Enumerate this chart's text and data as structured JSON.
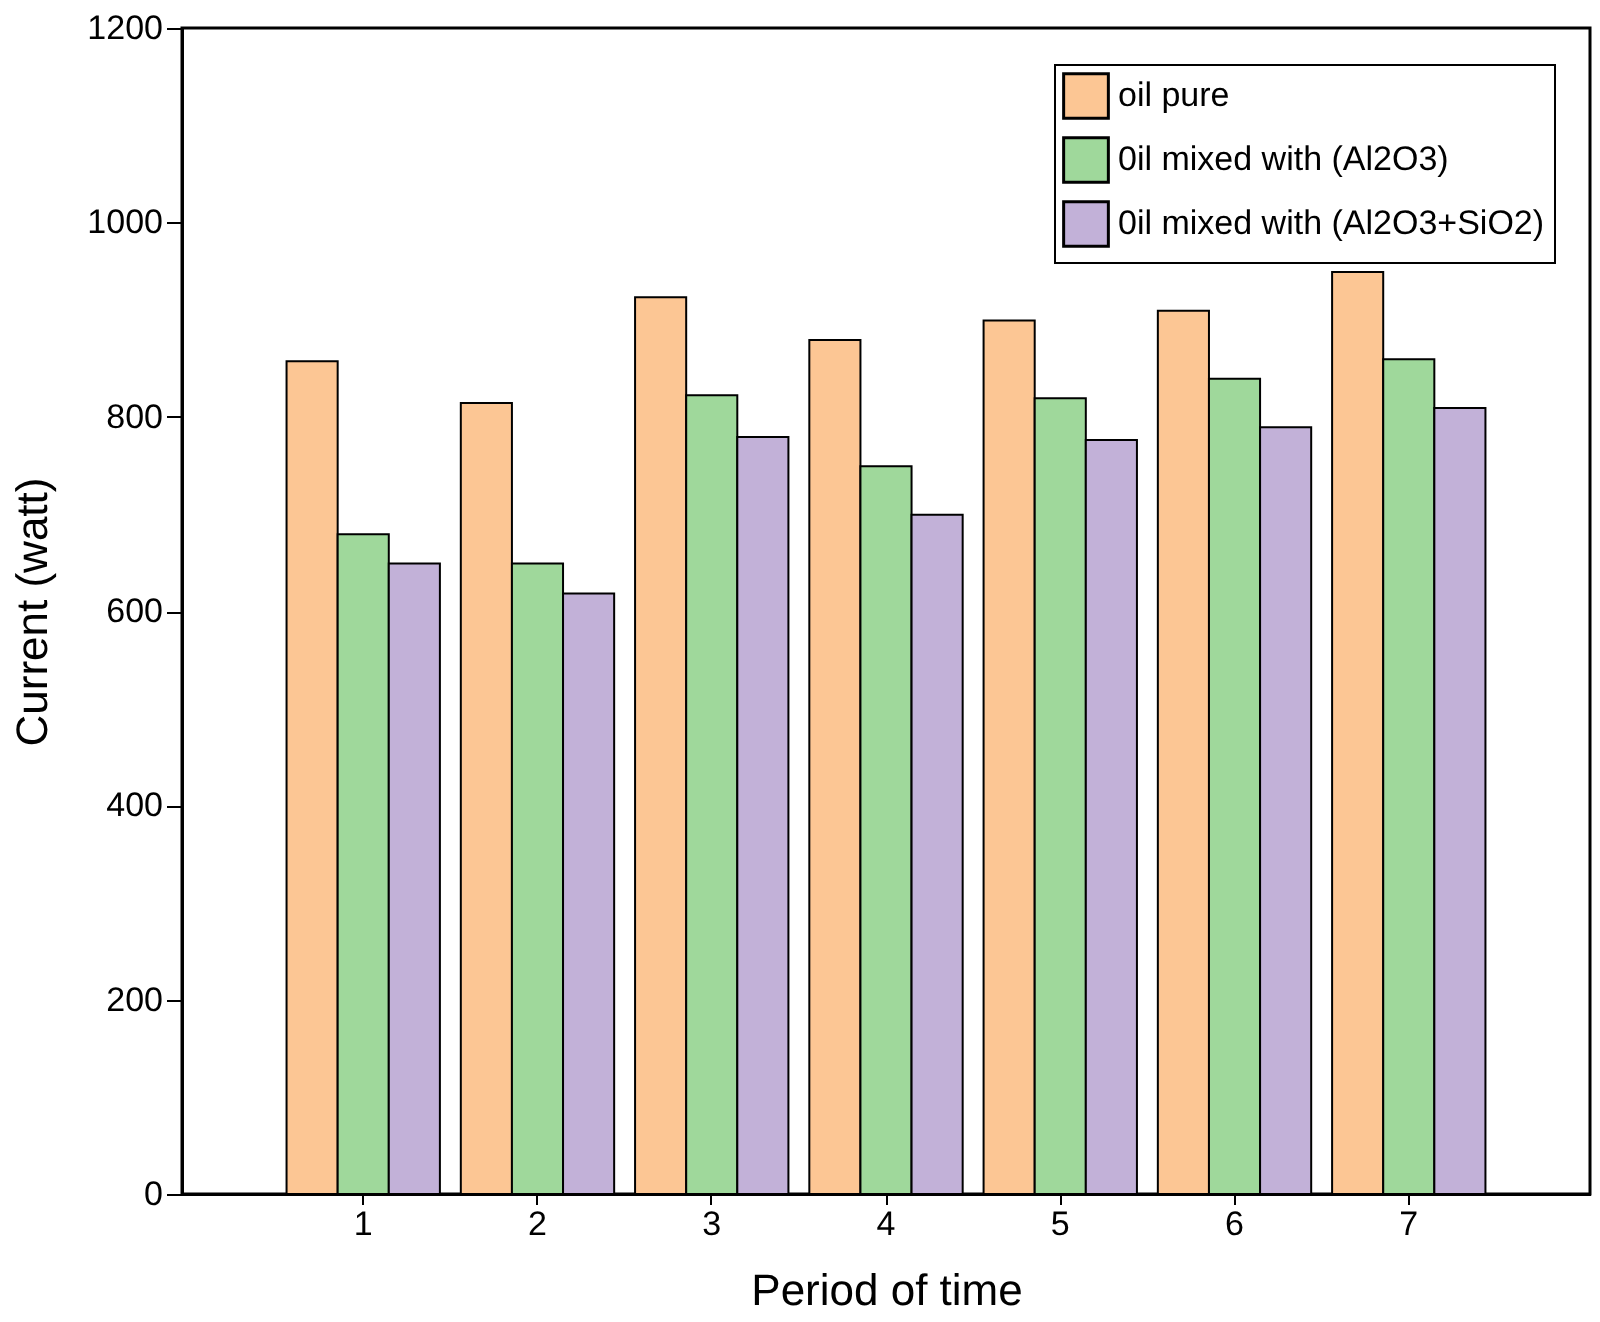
{
  "chart_data": {
    "type": "bar",
    "xlabel": "Period of time",
    "ylabel": "Current (watt)",
    "categories": [
      "1",
      "2",
      "3",
      "4",
      "5",
      "6",
      "7"
    ],
    "series": [
      {
        "name": "oil pure",
        "color": "#fcc694",
        "values": [
          857,
          814,
          923,
          879,
          899,
          909,
          949
        ]
      },
      {
        "name": "0il mixed with (Al2O3)",
        "color": "#9fd89b",
        "values": [
          679,
          649,
          822,
          749,
          819,
          839,
          859
        ]
      },
      {
        "name": "0il mixed with (Al2O3+SiO2)",
        "color": "#c2b1d8",
        "values": [
          649,
          618,
          779,
          699,
          776,
          789,
          809
        ]
      }
    ],
    "ylim": [
      0,
      1200
    ],
    "yticks": [
      0,
      200,
      400,
      600,
      800,
      1000,
      1200
    ],
    "grid": false,
    "legend": "top right"
  }
}
